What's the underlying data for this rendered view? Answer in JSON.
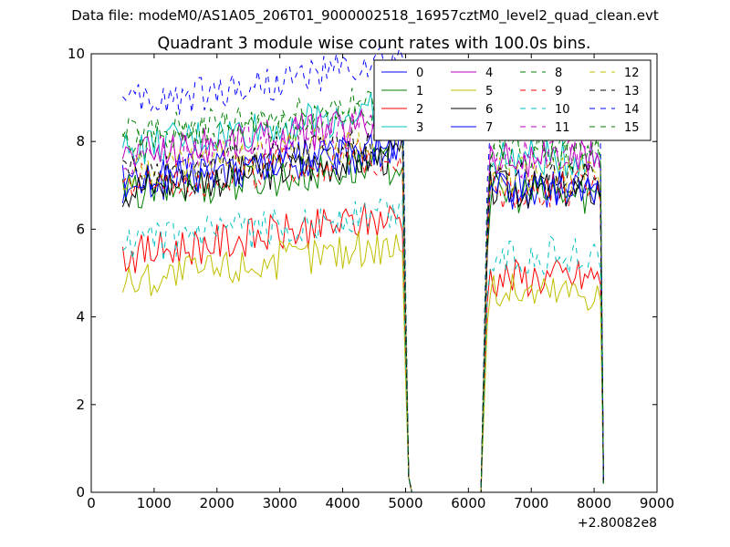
{
  "figure": {
    "suptitle": "Data file: modeM0/AS1A05_206T01_9000002518_16957cztM0_level2_quad_clean.evt"
  },
  "chart_data": {
    "type": "line",
    "title": "Quadrant 3 module wise count rates with 100.0s bins.",
    "xlabel": "",
    "ylabel": "",
    "xlim": [
      0,
      9000
    ],
    "ylim": [
      0,
      10
    ],
    "xticks": [
      "0",
      "1000",
      "2000",
      "3000",
      "4000",
      "5000",
      "6000",
      "7000",
      "8000",
      "9000"
    ],
    "yticks": [
      "0",
      "2",
      "4",
      "6",
      "8",
      "10"
    ],
    "x_offset_label": "+2.80082e8",
    "grid": false,
    "legend": {
      "placement": "top-right",
      "columns": 4
    },
    "dead_interval": [
      5100,
      6200
    ],
    "series": [
      {
        "name": "0",
        "color": "#0000ff",
        "dash": "solid",
        "level": 7.0,
        "trend": 0.8,
        "end": 6.9
      },
      {
        "name": "1",
        "color": "#008000",
        "dash": "solid",
        "level": 6.8,
        "trend": 0.7,
        "end": 6.8
      },
      {
        "name": "2",
        "color": "#ff0000",
        "dash": "solid",
        "level": 5.4,
        "trend": 0.9,
        "end": 4.9
      },
      {
        "name": "3",
        "color": "#00bfbf",
        "dash": "solid",
        "level": 7.8,
        "trend": 1.0,
        "end": 7.6
      },
      {
        "name": "4",
        "color": "#bf00bf",
        "dash": "solid",
        "level": 7.7,
        "trend": 0.8,
        "end": 7.6
      },
      {
        "name": "5",
        "color": "#bfbf00",
        "dash": "solid",
        "level": 4.8,
        "trend": 0.9,
        "end": 4.6
      },
      {
        "name": "6",
        "color": "#000000",
        "dash": "solid",
        "level": 6.9,
        "trend": 0.8,
        "end": 6.9
      },
      {
        "name": "7",
        "color": "#0000ff",
        "dash": "solid",
        "level": 7.1,
        "trend": 0.8,
        "end": 7.0
      },
      {
        "name": "8",
        "color": "#008000",
        "dash": "dashed",
        "level": 7.9,
        "trend": 0.9,
        "end": 7.8
      },
      {
        "name": "9",
        "color": "#ff0000",
        "dash": "dashed",
        "level": 7.0,
        "trend": 0.7,
        "end": 6.9
      },
      {
        "name": "10",
        "color": "#00bfbf",
        "dash": "dashed",
        "level": 5.6,
        "trend": 0.8,
        "end": 5.4
      },
      {
        "name": "11",
        "color": "#bf00bf",
        "dash": "dashed",
        "level": 7.6,
        "trend": 0.8,
        "end": 7.6
      },
      {
        "name": "12",
        "color": "#bfbf00",
        "dash": "dashed",
        "level": 7.3,
        "trend": 0.8,
        "end": 7.2
      },
      {
        "name": "13",
        "color": "#000000",
        "dash": "dashed",
        "level": 7.2,
        "trend": 0.9,
        "end": 7.1
      },
      {
        "name": "14",
        "color": "#0000ff",
        "dash": "dashed",
        "level": 8.8,
        "trend": 1.0,
        "end": 8.4
      },
      {
        "name": "15",
        "color": "#008000",
        "dash": "dashed",
        "level": 8.1,
        "trend": 0.9,
        "end": 8.0
      }
    ]
  }
}
